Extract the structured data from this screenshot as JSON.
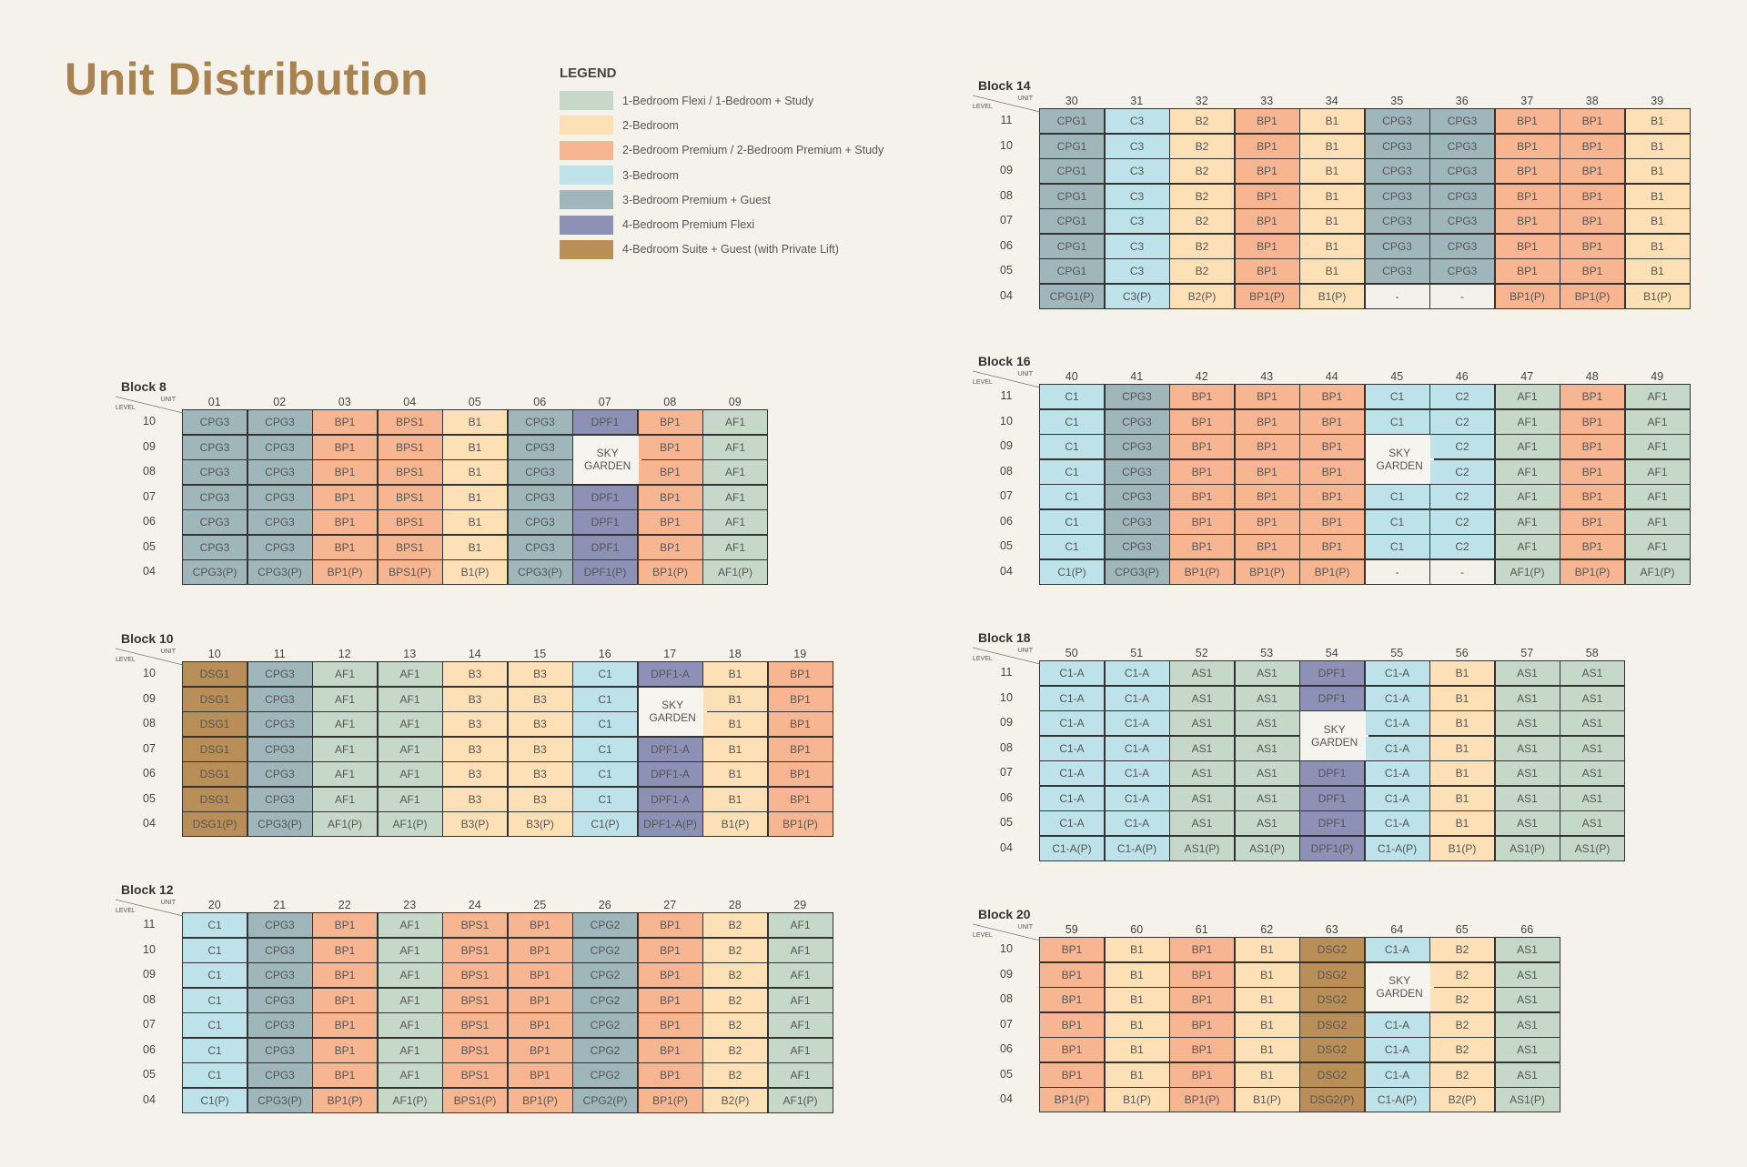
{
  "title": "Unit Distribution",
  "legend": {
    "title": "LEGEND",
    "items": [
      {
        "label": "1-Bedroom Flexi / 1-Bedroom + Study",
        "color": "#c6d9c8"
      },
      {
        "label": "2-Bedroom",
        "color": "#fde0b6"
      },
      {
        "label": "2-Bedroom Premium / 2-Bedroom Premium + Study",
        "color": "#f7b691"
      },
      {
        "label": "3-Bedroom",
        "color": "#bde2ea"
      },
      {
        "label": "3-Bedroom Premium + Guest",
        "color": "#9fb6bb"
      },
      {
        "label": "4-Bedroom Premium Flexi",
        "color": "#8e91b6"
      },
      {
        "label": "4-Bedroom Suite + Guest (with Private Lift)",
        "color": "#ba8e57"
      }
    ],
    "sky_color": "#f6f4ef",
    "empty_color": "#f4f1eb"
  },
  "header_labels": {
    "unit": "UNIT",
    "level": "LEVEL"
  },
  "blocks": [
    {
      "name": "Block 8",
      "units": [
        "01",
        "02",
        "03",
        "04",
        "05",
        "06",
        "07",
        "08",
        "09"
      ],
      "levels": [
        "10",
        "09",
        "08",
        "07",
        "06",
        "05",
        "04"
      ],
      "rows": [
        [
          "CPG3",
          "CPG3",
          "BP1",
          "BPS1",
          "B1",
          "CPG3",
          "DPF1",
          "BP1",
          "AF1"
        ],
        [
          "CPG3",
          "CPG3",
          "BP1",
          "BPS1",
          "B1",
          "CPG3",
          "SKY GARDEN",
          "BP1",
          "AF1"
        ],
        [
          "CPG3",
          "CPG3",
          "BP1",
          "BPS1",
          "B1",
          "CPG3",
          null,
          "BP1",
          "AF1"
        ],
        [
          "CPG3",
          "CPG3",
          "BP1",
          "BPS1",
          "B1",
          "CPG3",
          "DPF1",
          "BP1",
          "AF1"
        ],
        [
          "CPG3",
          "CPG3",
          "BP1",
          "BPS1",
          "B1",
          "CPG3",
          "DPF1",
          "BP1",
          "AF1"
        ],
        [
          "CPG3",
          "CPG3",
          "BP1",
          "BPS1",
          "B1",
          "CPG3",
          "DPF1",
          "BP1",
          "AF1"
        ],
        [
          "CPG3(P)",
          "CPG3(P)",
          "BP1(P)",
          "BPS1(P)",
          "B1(P)",
          "CPG3(P)",
          "DPF1(P)",
          "BP1(P)",
          "AF1(P)"
        ]
      ]
    },
    {
      "name": "Block 10",
      "units": [
        "10",
        "11",
        "12",
        "13",
        "14",
        "15",
        "16",
        "17",
        "18",
        "19"
      ],
      "levels": [
        "10",
        "09",
        "08",
        "07",
        "06",
        "05",
        "04"
      ],
      "rows": [
        [
          "DSG1",
          "CPG3",
          "AF1",
          "AF1",
          "B3",
          "B3",
          "C1",
          "DPF1-A",
          "B1",
          "BP1"
        ],
        [
          "DSG1",
          "CPG3",
          "AF1",
          "AF1",
          "B3",
          "B3",
          "C1",
          "SKY GARDEN",
          "B1",
          "BP1"
        ],
        [
          "DSG1",
          "CPG3",
          "AF1",
          "AF1",
          "B3",
          "B3",
          "C1",
          null,
          "B1",
          "BP1"
        ],
        [
          "DSG1",
          "CPG3",
          "AF1",
          "AF1",
          "B3",
          "B3",
          "C1",
          "DPF1-A",
          "B1",
          "BP1"
        ],
        [
          "DSG1",
          "CPG3",
          "AF1",
          "AF1",
          "B3",
          "B3",
          "C1",
          "DPF1-A",
          "B1",
          "BP1"
        ],
        [
          "DSG1",
          "CPG3",
          "AF1",
          "AF1",
          "B3",
          "B3",
          "C1",
          "DPF1-A",
          "B1",
          "BP1"
        ],
        [
          "DSG1(P)",
          "CPG3(P)",
          "AF1(P)",
          "AF1(P)",
          "B3(P)",
          "B3(P)",
          "C1(P)",
          "DPF1-A(P)",
          "B1(P)",
          "BP1(P)"
        ]
      ]
    },
    {
      "name": "Block 12",
      "units": [
        "20",
        "21",
        "22",
        "23",
        "24",
        "25",
        "26",
        "27",
        "28",
        "29"
      ],
      "levels": [
        "11",
        "10",
        "09",
        "08",
        "07",
        "06",
        "05",
        "04"
      ],
      "rows": [
        [
          "C1",
          "CPG3",
          "BP1",
          "AF1",
          "BPS1",
          "BP1",
          "CPG2",
          "BP1",
          "B2",
          "AF1"
        ],
        [
          "C1",
          "CPG3",
          "BP1",
          "AF1",
          "BPS1",
          "BP1",
          "CPG2",
          "BP1",
          "B2",
          "AF1"
        ],
        [
          "C1",
          "CPG3",
          "BP1",
          "AF1",
          "BPS1",
          "BP1",
          "CPG2",
          "BP1",
          "B2",
          "AF1"
        ],
        [
          "C1",
          "CPG3",
          "BP1",
          "AF1",
          "BPS1",
          "BP1",
          "CPG2",
          "BP1",
          "B2",
          "AF1"
        ],
        [
          "C1",
          "CPG3",
          "BP1",
          "AF1",
          "BPS1",
          "BP1",
          "CPG2",
          "BP1",
          "B2",
          "AF1"
        ],
        [
          "C1",
          "CPG3",
          "BP1",
          "AF1",
          "BPS1",
          "BP1",
          "CPG2",
          "BP1",
          "B2",
          "AF1"
        ],
        [
          "C1",
          "CPG3",
          "BP1",
          "AF1",
          "BPS1",
          "BP1",
          "CPG2",
          "BP1",
          "B2",
          "AF1"
        ],
        [
          "C1(P)",
          "CPG3(P)",
          "BP1(P)",
          "AF1(P)",
          "BPS1(P)",
          "BP1(P)",
          "CPG2(P)",
          "BP1(P)",
          "B2(P)",
          "AF1(P)"
        ]
      ]
    },
    {
      "name": "Block 14",
      "units": [
        "30",
        "31",
        "32",
        "33",
        "34",
        "35",
        "36",
        "37",
        "38",
        "39"
      ],
      "levels": [
        "11",
        "10",
        "09",
        "08",
        "07",
        "06",
        "05",
        "04"
      ],
      "rows": [
        [
          "CPG1",
          "C3",
          "B2",
          "BP1",
          "B1",
          "CPG3",
          "CPG3",
          "BP1",
          "BP1",
          "B1"
        ],
        [
          "CPG1",
          "C3",
          "B2",
          "BP1",
          "B1",
          "CPG3",
          "CPG3",
          "BP1",
          "BP1",
          "B1"
        ],
        [
          "CPG1",
          "C3",
          "B2",
          "BP1",
          "B1",
          "CPG3",
          "CPG3",
          "BP1",
          "BP1",
          "B1"
        ],
        [
          "CPG1",
          "C3",
          "B2",
          "BP1",
          "B1",
          "CPG3",
          "CPG3",
          "BP1",
          "BP1",
          "B1"
        ],
        [
          "CPG1",
          "C3",
          "B2",
          "BP1",
          "B1",
          "CPG3",
          "CPG3",
          "BP1",
          "BP1",
          "B1"
        ],
        [
          "CPG1",
          "C3",
          "B2",
          "BP1",
          "B1",
          "CPG3",
          "CPG3",
          "BP1",
          "BP1",
          "B1"
        ],
        [
          "CPG1",
          "C3",
          "B2",
          "BP1",
          "B1",
          "CPG3",
          "CPG3",
          "BP1",
          "BP1",
          "B1"
        ],
        [
          "CPG1(P)",
          "C3(P)",
          "B2(P)",
          "BP1(P)",
          "B1(P)",
          "-",
          "-",
          "BP1(P)",
          "BP1(P)",
          "B1(P)"
        ]
      ]
    },
    {
      "name": "Block 16",
      "units": [
        "40",
        "41",
        "42",
        "43",
        "44",
        "45",
        "46",
        "47",
        "48",
        "49"
      ],
      "levels": [
        "11",
        "10",
        "09",
        "08",
        "07",
        "06",
        "05",
        "04"
      ],
      "rows": [
        [
          "C1",
          "CPG3",
          "BP1",
          "BP1",
          "BP1",
          "C1",
          "C2",
          "AF1",
          "BP1",
          "AF1"
        ],
        [
          "C1",
          "CPG3",
          "BP1",
          "BP1",
          "BP1",
          "C1",
          "C2",
          "AF1",
          "BP1",
          "AF1"
        ],
        [
          "C1",
          "CPG3",
          "BP1",
          "BP1",
          "BP1",
          "SKY GARDEN",
          "C2",
          "AF1",
          "BP1",
          "AF1"
        ],
        [
          "C1",
          "CPG3",
          "BP1",
          "BP1",
          "BP1",
          null,
          "C2",
          "AF1",
          "BP1",
          "AF1"
        ],
        [
          "C1",
          "CPG3",
          "BP1",
          "BP1",
          "BP1",
          "C1",
          "C2",
          "AF1",
          "BP1",
          "AF1"
        ],
        [
          "C1",
          "CPG3",
          "BP1",
          "BP1",
          "BP1",
          "C1",
          "C2",
          "AF1",
          "BP1",
          "AF1"
        ],
        [
          "C1",
          "CPG3",
          "BP1",
          "BP1",
          "BP1",
          "C1",
          "C2",
          "AF1",
          "BP1",
          "AF1"
        ],
        [
          "C1(P)",
          "CPG3(P)",
          "BP1(P)",
          "BP1(P)",
          "BP1(P)",
          "-",
          "-",
          "AF1(P)",
          "BP1(P)",
          "AF1(P)"
        ]
      ]
    },
    {
      "name": "Block 18",
      "units": [
        "50",
        "51",
        "52",
        "53",
        "54",
        "55",
        "56",
        "57",
        "58"
      ],
      "levels": [
        "11",
        "10",
        "09",
        "08",
        "07",
        "06",
        "05",
        "04"
      ],
      "rows": [
        [
          "C1-A",
          "C1-A",
          "AS1",
          "AS1",
          "DPF1",
          "C1-A",
          "B1",
          "AS1",
          "AS1"
        ],
        [
          "C1-A",
          "C1-A",
          "AS1",
          "AS1",
          "DPF1",
          "C1-A",
          "B1",
          "AS1",
          "AS1"
        ],
        [
          "C1-A",
          "C1-A",
          "AS1",
          "AS1",
          "SKY GARDEN",
          "C1-A",
          "B1",
          "AS1",
          "AS1"
        ],
        [
          "C1-A",
          "C1-A",
          "AS1",
          "AS1",
          null,
          "C1-A",
          "B1",
          "AS1",
          "AS1"
        ],
        [
          "C1-A",
          "C1-A",
          "AS1",
          "AS1",
          "DPF1",
          "C1-A",
          "B1",
          "AS1",
          "AS1"
        ],
        [
          "C1-A",
          "C1-A",
          "AS1",
          "AS1",
          "DPF1",
          "C1-A",
          "B1",
          "AS1",
          "AS1"
        ],
        [
          "C1-A",
          "C1-A",
          "AS1",
          "AS1",
          "DPF1",
          "C1-A",
          "B1",
          "AS1",
          "AS1"
        ],
        [
          "C1-A(P)",
          "C1-A(P)",
          "AS1(P)",
          "AS1(P)",
          "DPF1(P)",
          "C1-A(P)",
          "B1(P)",
          "AS1(P)",
          "AS1(P)"
        ]
      ]
    },
    {
      "name": "Block 20",
      "units": [
        "59",
        "60",
        "61",
        "62",
        "63",
        "64",
        "65",
        "66"
      ],
      "levels": [
        "10",
        "09",
        "08",
        "07",
        "06",
        "05",
        "04"
      ],
      "rows": [
        [
          "BP1",
          "B1",
          "BP1",
          "B1",
          "DSG2",
          "C1-A",
          "B2",
          "AS1"
        ],
        [
          "BP1",
          "B1",
          "BP1",
          "B1",
          "DSG2",
          "SKY GARDEN",
          "B2",
          "AS1"
        ],
        [
          "BP1",
          "B1",
          "BP1",
          "B1",
          "DSG2",
          null,
          "B2",
          "AS1"
        ],
        [
          "BP1",
          "B1",
          "BP1",
          "B1",
          "DSG2",
          "C1-A",
          "B2",
          "AS1"
        ],
        [
          "BP1",
          "B1",
          "BP1",
          "B1",
          "DSG2",
          "C1-A",
          "B2",
          "AS1"
        ],
        [
          "BP1",
          "B1",
          "BP1",
          "B1",
          "DSG2",
          "C1-A",
          "B2",
          "AS1"
        ],
        [
          "BP1(P)",
          "B1(P)",
          "BP1(P)",
          "B1(P)",
          "DSG2(P)",
          "C1-A(P)",
          "B2(P)",
          "AS1(P)"
        ]
      ]
    }
  ]
}
